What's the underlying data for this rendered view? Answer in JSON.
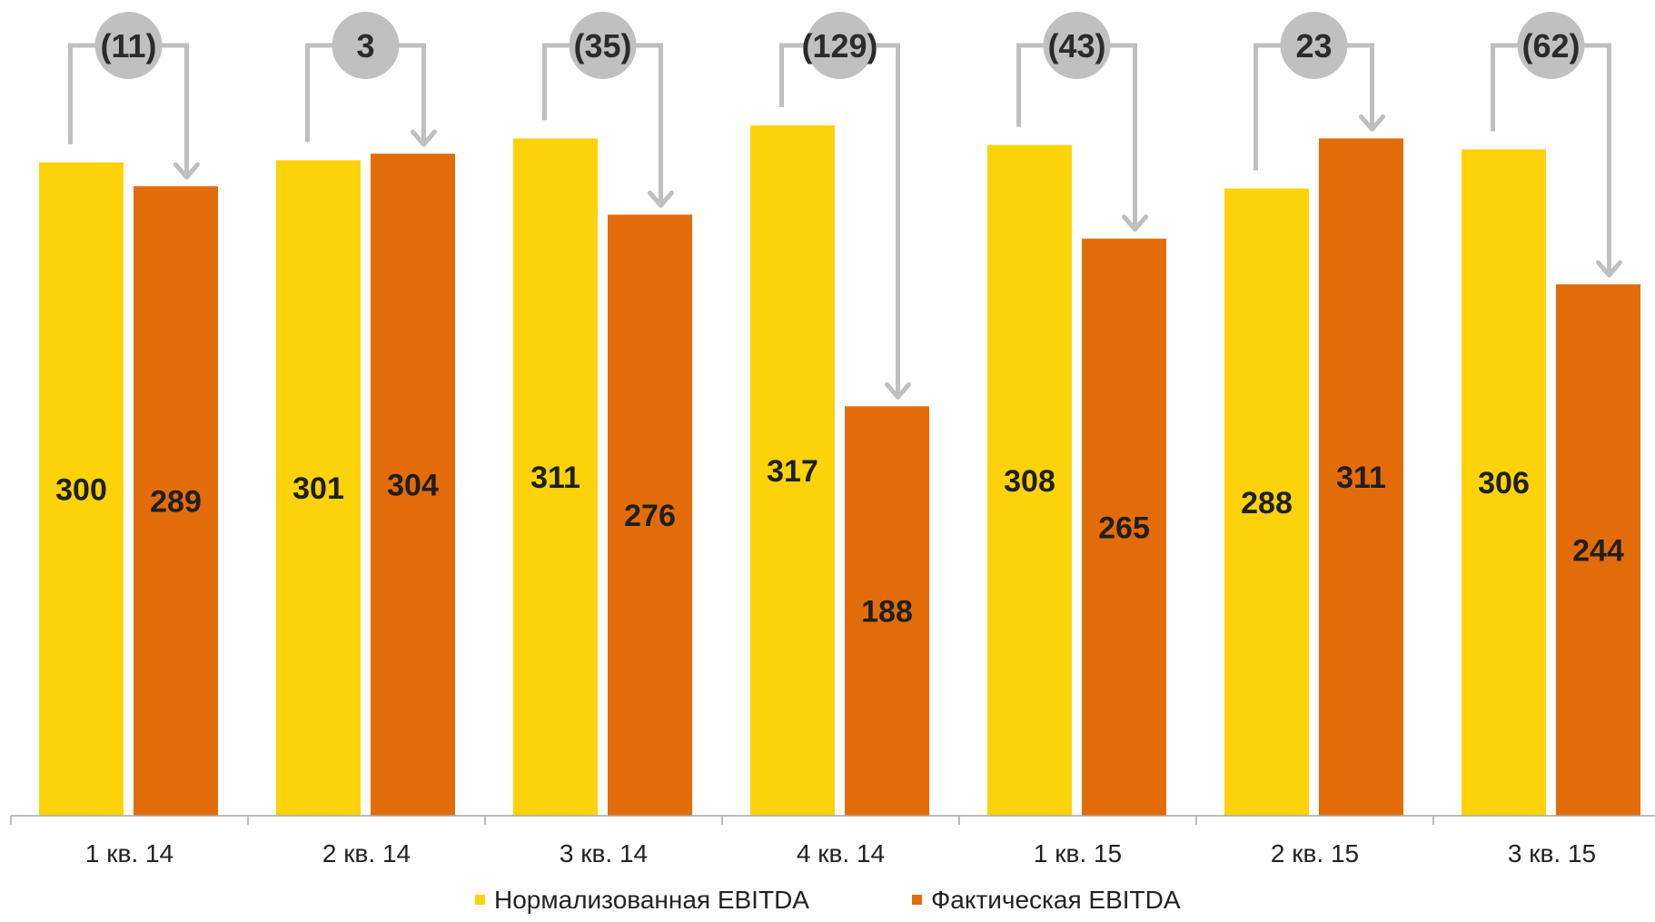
{
  "chart_data": {
    "type": "bar",
    "categories": [
      "1 кв. 14",
      "2 кв. 14",
      "3 кв. 14",
      "4 кв. 14",
      "1 кв. 15",
      "2 кв. 15",
      "3 кв. 15"
    ],
    "series": [
      {
        "name": "Нормализованная EBITDA",
        "color": "#FCD20A",
        "values": [
          300,
          301,
          311,
          317,
          308,
          288,
          306
        ]
      },
      {
        "name": "Фактическая EBITDA",
        "color": "#E36C0A",
        "values": [
          289,
          304,
          276,
          188,
          265,
          311,
          244
        ]
      }
    ],
    "differences": [
      "(11)",
      "3",
      "(35)",
      "(129)",
      "(43)",
      "23",
      "(62)"
    ],
    "ylim": [
      0,
      317
    ],
    "legend_position": "bottom",
    "grid": false,
    "colors": {
      "arrow": "#BFBFBF",
      "bubble": "#C0C0C0",
      "axis": "#A6A6A6"
    }
  }
}
